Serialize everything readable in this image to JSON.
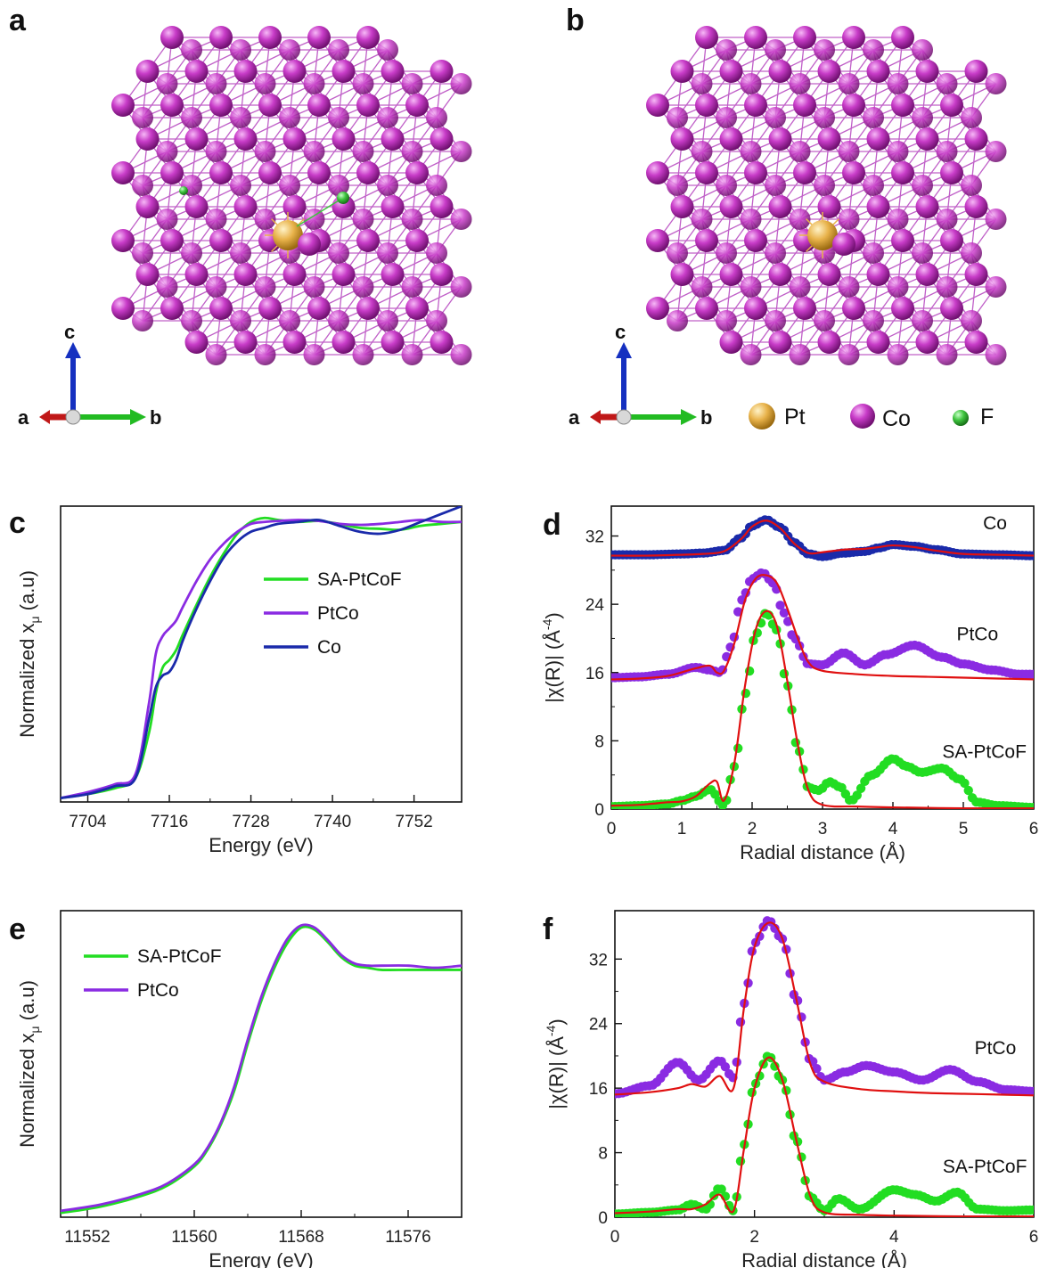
{
  "panels": {
    "a": {
      "letter": "a"
    },
    "b": {
      "letter": "b"
    },
    "c": {
      "letter": "c"
    },
    "d": {
      "letter": "d"
    },
    "e": {
      "letter": "e"
    },
    "f": {
      "letter": "f"
    }
  },
  "axes_labels": {
    "a": "a",
    "b": "b",
    "c": "c"
  },
  "element_legend": [
    {
      "label": "Pt",
      "color": "#e8b24a"
    },
    {
      "label": "Co",
      "color": "#c03cc0"
    },
    {
      "label": "F",
      "color": "#3ec43e"
    }
  ],
  "colors": {
    "co_atom": "#c03cc0",
    "bond": "#c060c8",
    "pt_atom": "#e8b24a",
    "f_atom": "#3ec43e",
    "fit": "#e01010",
    "sa": "#22dd22",
    "ptco": "#8a2be2",
    "co": "#1a2aaa"
  },
  "chart_data": [
    {
      "id": "c",
      "type": "line",
      "title": "",
      "xlabel": "Energy (eV)",
      "ylabel": "Normalized x",
      "ylabel_sub": "μ",
      "ylabel_unit": "(a.u)",
      "xlim": [
        7700,
        7759
      ],
      "ylim": [
        0,
        1.5
      ],
      "xticks": [
        7704,
        7716,
        7728,
        7740,
        7752
      ],
      "yticks": [],
      "legend": [
        "SA-PtCoF",
        "PtCo",
        "Co"
      ],
      "series": [
        {
          "name": "SA-PtCoF",
          "color": "#22dd22",
          "x": [
            7700,
            7704,
            7708,
            7711,
            7713,
            7714,
            7715,
            7716,
            7717,
            7718,
            7720,
            7722,
            7724,
            7726,
            7728,
            7730,
            7732,
            7735,
            7738,
            7741,
            7744,
            7747,
            7750,
            7753,
            7756,
            7759
          ],
          "y": [
            0.02,
            0.04,
            0.07,
            0.12,
            0.35,
            0.55,
            0.68,
            0.72,
            0.77,
            0.85,
            1.0,
            1.14,
            1.26,
            1.36,
            1.42,
            1.44,
            1.43,
            1.42,
            1.425,
            1.41,
            1.39,
            1.385,
            1.38,
            1.4,
            1.41,
            1.42
          ]
        },
        {
          "name": "PtCo",
          "color": "#8a2be2",
          "x": [
            7700,
            7704,
            7708,
            7711,
            7713,
            7714,
            7715,
            7716,
            7717,
            7718,
            7720,
            7722,
            7724,
            7726,
            7728,
            7730,
            7732,
            7735,
            7738,
            7741,
            7744,
            7747,
            7750,
            7753,
            7756,
            7759
          ],
          "y": [
            0.02,
            0.05,
            0.09,
            0.14,
            0.5,
            0.75,
            0.84,
            0.88,
            0.92,
            0.99,
            1.12,
            1.23,
            1.31,
            1.37,
            1.41,
            1.42,
            1.425,
            1.43,
            1.425,
            1.41,
            1.405,
            1.41,
            1.42,
            1.43,
            1.42,
            1.42
          ]
        },
        {
          "name": "Co",
          "color": "#1a2aaa",
          "x": [
            7700,
            7704,
            7708,
            7711,
            7713,
            7714,
            7715,
            7716,
            7717,
            7718,
            7720,
            7722,
            7724,
            7726,
            7728,
            7730,
            7732,
            7735,
            7738,
            7741,
            7744,
            7747,
            7750,
            7753,
            7756,
            7759
          ],
          "y": [
            0.02,
            0.04,
            0.08,
            0.12,
            0.42,
            0.58,
            0.64,
            0.66,
            0.72,
            0.82,
            0.98,
            1.12,
            1.24,
            1.32,
            1.37,
            1.39,
            1.41,
            1.42,
            1.43,
            1.4,
            1.37,
            1.36,
            1.38,
            1.42,
            1.46,
            1.5
          ]
        }
      ]
    },
    {
      "id": "d",
      "type": "line",
      "title": "",
      "xlabel": "Radial distance (Å)",
      "ylabel": "|χ(R)| (Å",
      "ylabel_sup": "-4",
      "ylabel_close": ")",
      "xlim": [
        0,
        6
      ],
      "ylim": [
        0,
        35.5
      ],
      "xticks": [
        0,
        1,
        2,
        3,
        4,
        5,
        6
      ],
      "yticks": [
        0,
        8,
        16,
        24,
        32
      ],
      "series_labels": [
        {
          "text": "Co",
          "x": 5.45,
          "y": 32.8
        },
        {
          "text": "PtCo",
          "x": 5.2,
          "y": 19.8
        },
        {
          "text": "SA-PtCoF",
          "x": 5.3,
          "y": 6.0
        }
      ],
      "series": [
        {
          "name": "Co data",
          "color": "#1a2aaa",
          "style": "dots",
          "x": [
            0,
            0.5,
            1.0,
            1.3,
            1.6,
            1.85,
            2.0,
            2.2,
            2.4,
            2.6,
            2.8,
            3.0,
            3.3,
            3.6,
            3.8,
            4.0,
            4.3,
            4.6,
            5.0,
            5.5,
            6.0
          ],
          "y": [
            29.8,
            29.8,
            29.9,
            30.0,
            30.3,
            31.8,
            33.2,
            33.9,
            33.0,
            31.2,
            29.9,
            29.6,
            30.0,
            30.2,
            30.6,
            31.0,
            30.8,
            30.4,
            29.9,
            29.8,
            29.7
          ]
        },
        {
          "name": "Co fit",
          "color": "#e01010",
          "style": "line",
          "x": [
            0,
            0.5,
            1.0,
            1.3,
            1.6,
            1.85,
            2.0,
            2.2,
            2.4,
            2.6,
            2.8,
            3.0,
            3.3,
            3.6,
            3.8,
            4.0,
            4.3,
            4.6,
            5.0,
            5.5,
            6.0
          ],
          "y": [
            29.7,
            29.7,
            29.8,
            29.9,
            30.2,
            31.7,
            33.1,
            33.8,
            32.9,
            31.1,
            30.0,
            30.1,
            30.4,
            30.5,
            30.7,
            30.9,
            30.7,
            30.3,
            29.9,
            29.8,
            29.7
          ]
        },
        {
          "name": "PtCo data",
          "color": "#8a2be2",
          "style": "dots",
          "x": [
            0,
            0.4,
            0.8,
            1.2,
            1.4,
            1.55,
            1.7,
            1.85,
            2.0,
            2.15,
            2.3,
            2.45,
            2.6,
            2.8,
            3.0,
            3.3,
            3.6,
            3.9,
            4.3,
            4.7,
            5.0,
            5.4,
            5.8,
            6.0
          ],
          "y": [
            15.4,
            15.5,
            15.8,
            16.6,
            16.3,
            16.0,
            19.0,
            24.5,
            27.0,
            27.7,
            26.5,
            23.0,
            20.0,
            17.0,
            16.9,
            18.3,
            16.9,
            18.1,
            19.2,
            17.8,
            17.0,
            16.3,
            15.8,
            15.8
          ]
        },
        {
          "name": "PtCo fit",
          "color": "#e01010",
          "style": "line",
          "x": [
            0,
            0.4,
            0.8,
            1.2,
            1.4,
            1.5,
            1.6,
            1.75,
            1.9,
            2.05,
            2.2,
            2.35,
            2.5,
            2.65,
            2.8,
            3.0,
            3.5,
            4.0,
            4.5,
            5.0,
            5.5,
            6.0
          ],
          "y": [
            15.2,
            15.3,
            15.6,
            16.5,
            16.8,
            16.0,
            16.2,
            19.5,
            24.5,
            27.0,
            27.4,
            26.5,
            23.5,
            20.0,
            17.2,
            16.2,
            15.8,
            15.6,
            15.5,
            15.4,
            15.3,
            15.2
          ]
        },
        {
          "name": "SA-PtCoF data",
          "color": "#22dd22",
          "style": "dots",
          "x": [
            0,
            0.4,
            0.8,
            1.0,
            1.2,
            1.4,
            1.6,
            1.75,
            1.9,
            2.05,
            2.2,
            2.35,
            2.5,
            2.65,
            2.8,
            2.95,
            3.1,
            3.25,
            3.4,
            3.7,
            4.0,
            4.2,
            4.4,
            4.7,
            4.95,
            5.2,
            5.5,
            6.0
          ],
          "y": [
            0.3,
            0.4,
            0.6,
            1.0,
            1.5,
            2.3,
            0.4,
            5.0,
            13.5,
            20.5,
            23.0,
            21.0,
            14.5,
            7.0,
            2.5,
            2.2,
            3.2,
            2.6,
            1.0,
            4.0,
            5.9,
            5.0,
            4.3,
            4.8,
            3.5,
            0.8,
            0.4,
            0.2
          ]
        },
        {
          "name": "SA-PtCoF fit",
          "color": "#e01010",
          "style": "line",
          "x": [
            0,
            0.4,
            0.8,
            1.0,
            1.2,
            1.4,
            1.5,
            1.6,
            1.75,
            1.9,
            2.05,
            2.2,
            2.35,
            2.5,
            2.65,
            2.8,
            3.0,
            3.5,
            4.0,
            5.0,
            6.0
          ],
          "y": [
            0.4,
            0.5,
            0.8,
            0.9,
            1.5,
            3.0,
            3.2,
            1.0,
            5.5,
            14.5,
            21.0,
            23.2,
            21.5,
            15.0,
            7.5,
            2.2,
            0.5,
            0.3,
            0.2,
            0.1,
            0.1
          ]
        }
      ]
    },
    {
      "id": "e",
      "type": "line",
      "title": "",
      "xlabel": "Energy (eV)",
      "ylabel": "Normalized x",
      "ylabel_sub": "μ",
      "ylabel_unit": "(a.u)",
      "xlim": [
        11550,
        11580
      ],
      "ylim": [
        0,
        1.45
      ],
      "xticks": [
        11552,
        11560,
        11568,
        11576
      ],
      "yticks": [],
      "legend": [
        "SA-PtCoF",
        "PtCo"
      ],
      "series": [
        {
          "name": "SA-PtCoF",
          "color": "#22dd22",
          "x": [
            11550,
            11553,
            11556,
            11558,
            11560,
            11561,
            11562,
            11563,
            11564,
            11565,
            11566,
            11567,
            11568,
            11569,
            11570,
            11571,
            11572,
            11573,
            11574,
            11576,
            11578,
            11580
          ],
          "y": [
            0.02,
            0.05,
            0.1,
            0.15,
            0.24,
            0.32,
            0.44,
            0.6,
            0.82,
            1.02,
            1.18,
            1.3,
            1.37,
            1.36,
            1.3,
            1.23,
            1.19,
            1.18,
            1.17,
            1.17,
            1.17,
            1.17
          ]
        },
        {
          "name": "PtCo",
          "color": "#8a2be2",
          "x": [
            11550,
            11553,
            11556,
            11558,
            11560,
            11561,
            11562,
            11563,
            11564,
            11565,
            11566,
            11567,
            11568,
            11569,
            11570,
            11571,
            11572,
            11573,
            11574,
            11576,
            11578,
            11580
          ],
          "y": [
            0.03,
            0.06,
            0.11,
            0.16,
            0.25,
            0.33,
            0.45,
            0.62,
            0.84,
            1.04,
            1.2,
            1.32,
            1.38,
            1.37,
            1.31,
            1.24,
            1.2,
            1.19,
            1.19,
            1.19,
            1.18,
            1.19
          ]
        }
      ]
    },
    {
      "id": "f",
      "type": "line",
      "title": "",
      "xlabel": "Radial distance (Å)",
      "ylabel": "|χ(R)| (Å",
      "ylabel_sup": "-4",
      "ylabel_close": ")",
      "xlim": [
        0,
        6
      ],
      "ylim": [
        0,
        38
      ],
      "xticks": [
        0,
        2,
        4,
        6
      ],
      "yticks": [
        0,
        8,
        16,
        24,
        32
      ],
      "series_labels": [
        {
          "text": "PtCo",
          "x": 5.45,
          "y": 20.2
        },
        {
          "text": "SA-PtCoF",
          "x": 5.3,
          "y": 5.5
        }
      ],
      "series": [
        {
          "name": "PtCo data",
          "color": "#8a2be2",
          "style": "dots",
          "x": [
            0,
            0.5,
            0.9,
            1.2,
            1.5,
            1.7,
            1.85,
            2.0,
            2.2,
            2.4,
            2.6,
            2.8,
            3.0,
            3.3,
            3.6,
            4.0,
            4.4,
            4.8,
            5.2,
            5.6,
            6.0
          ],
          "y": [
            15.3,
            16.3,
            19.2,
            17.0,
            19.4,
            17.3,
            26.5,
            34.0,
            36.8,
            34.5,
            27.0,
            19.5,
            17.0,
            18.0,
            18.8,
            18.0,
            17.0,
            18.3,
            16.8,
            15.8,
            15.6
          ]
        },
        {
          "name": "PtCo fit",
          "color": "#e01010",
          "style": "line",
          "x": [
            0,
            0.5,
            0.9,
            1.1,
            1.3,
            1.5,
            1.7,
            1.85,
            2.0,
            2.2,
            2.4,
            2.6,
            2.8,
            3.0,
            3.5,
            4.0,
            4.5,
            5.0,
            5.5,
            6.0
          ],
          "y": [
            15.2,
            15.5,
            16.0,
            16.5,
            16.2,
            17.5,
            16.0,
            26.0,
            33.5,
            36.5,
            34.5,
            27.0,
            19.0,
            16.8,
            15.9,
            15.6,
            15.4,
            15.3,
            15.2,
            15.1
          ]
        },
        {
          "name": "SA-PtCoF data",
          "color": "#22dd22",
          "style": "dots",
          "x": [
            0,
            0.5,
            0.9,
            1.1,
            1.3,
            1.5,
            1.7,
            1.85,
            2.0,
            2.2,
            2.4,
            2.6,
            2.8,
            3.0,
            3.2,
            3.5,
            4.0,
            4.3,
            4.6,
            4.9,
            5.2,
            5.6,
            6.0
          ],
          "y": [
            0.4,
            0.6,
            0.9,
            1.6,
            1.0,
            3.6,
            0.8,
            9.0,
            16.5,
            20.0,
            17.0,
            9.5,
            2.5,
            0.8,
            2.3,
            1.0,
            3.4,
            2.8,
            2.0,
            3.1,
            1.0,
            0.8,
            0.9
          ]
        },
        {
          "name": "SA-PtCoF fit",
          "color": "#e01010",
          "style": "line",
          "x": [
            0,
            0.5,
            0.9,
            1.1,
            1.3,
            1.5,
            1.7,
            1.85,
            2.0,
            2.2,
            2.4,
            2.6,
            2.8,
            3.0,
            3.5,
            4.0,
            5.0,
            6.0
          ],
          "y": [
            0.5,
            0.7,
            1.0,
            1.0,
            1.6,
            2.8,
            0.8,
            8.5,
            16.0,
            19.8,
            17.0,
            9.5,
            2.6,
            0.6,
            0.3,
            0.2,
            0.1,
            0.1
          ]
        }
      ]
    }
  ]
}
